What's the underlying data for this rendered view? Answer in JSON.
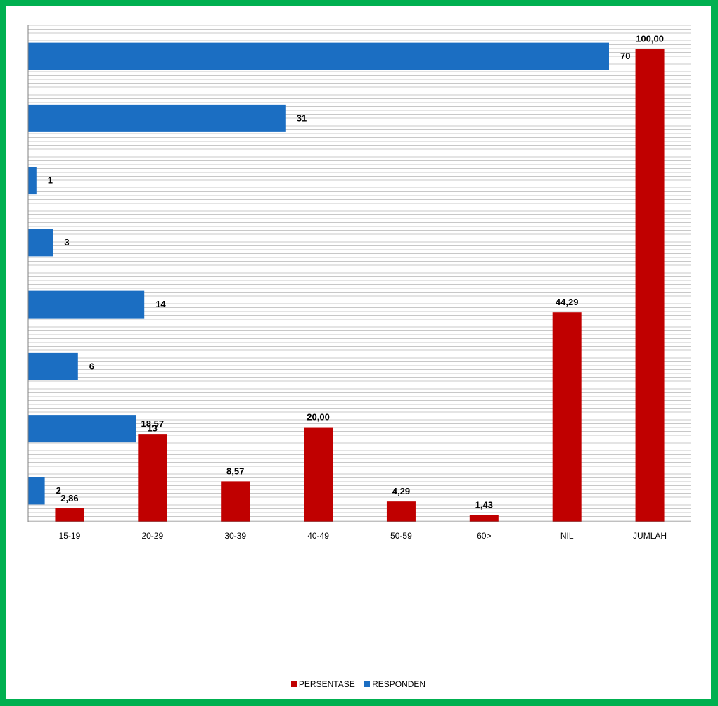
{
  "chart_data": {
    "type": "bar",
    "categories": [
      "15-19",
      "20-29",
      "30-39",
      "40-49",
      "50-59",
      "60>",
      "NIL",
      "JUMLAH"
    ],
    "series": [
      {
        "name": "PERSENTASE",
        "orientation": "vertical",
        "color": "#c00000",
        "values": [
          2.86,
          18.57,
          8.57,
          20.0,
          4.29,
          1.43,
          44.29,
          100.0
        ],
        "labels": [
          "2,86",
          "18,57",
          "8,57",
          "20,00",
          "4,29",
          "1,43",
          "44,29",
          "100,00"
        ]
      },
      {
        "name": "RESPONDEN",
        "orientation": "horizontal",
        "color": "#1b6ec2",
        "values": [
          2,
          13,
          6,
          14,
          3,
          1,
          31,
          70
        ],
        "labels": [
          "2",
          "13",
          "6",
          "14",
          "3",
          "1",
          "31",
          "70"
        ]
      }
    ],
    "title": "",
    "xlabel": "",
    "ylabel": "",
    "ylim": [
      0,
      105
    ],
    "xlim_horizontal": [
      0,
      70
    ],
    "grid": true,
    "legend_position": "bottom",
    "background_color": "#00b050"
  }
}
